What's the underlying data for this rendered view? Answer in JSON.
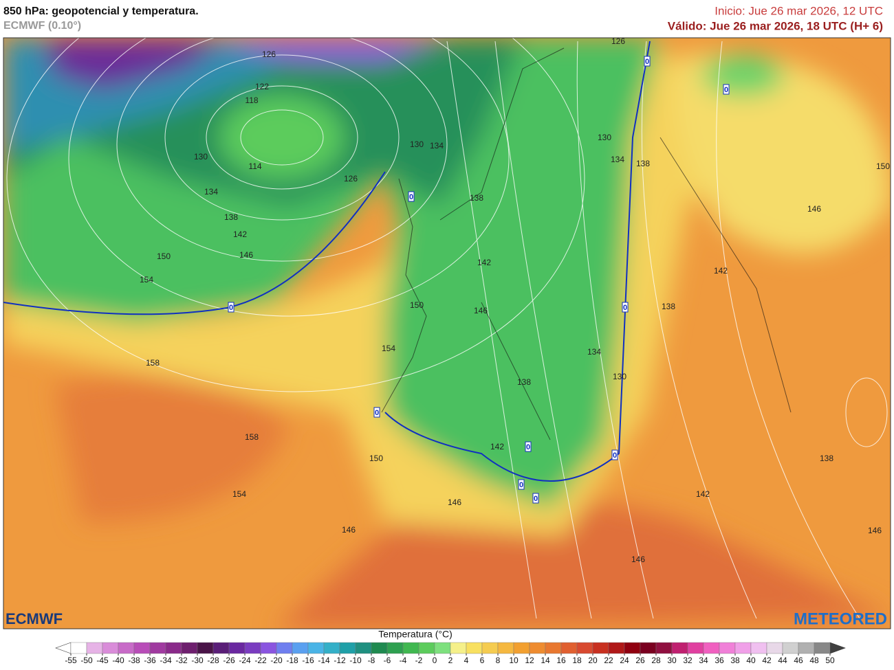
{
  "header": {
    "title": "850 hPa: geopotencial y temperatura.",
    "model": "ECMWF (0.10°)",
    "init": "Inicio: Jue 26 mar 2026, 12 UTC",
    "valid": "Válido: Jue 26 mar 2026, 18 UTC (H+ 6)"
  },
  "logos": {
    "left": "ECMWF",
    "right": "METEORED"
  },
  "contour_labels": [
    126,
    122,
    118,
    114,
    130,
    134,
    138,
    142,
    146,
    150,
    154,
    158,
    126,
    130,
    134,
    138,
    142,
    146,
    150,
    154,
    126,
    130,
    134,
    138,
    138,
    142,
    146,
    150,
    134,
    130,
    138,
    142,
    158,
    150,
    154,
    146,
    146,
    146,
    142,
    138,
    146
  ],
  "zero_labels": [
    0,
    0,
    0,
    0,
    0,
    0,
    0,
    0,
    0,
    0
  ],
  "colorbar": {
    "title": "Temperatura (°C)",
    "ticks": [
      -55,
      -50,
      -45,
      -40,
      -38,
      -36,
      -34,
      -32,
      -30,
      -28,
      -26,
      -24,
      -22,
      -20,
      -18,
      -16,
      -14,
      -12,
      -10,
      -8,
      -6,
      -4,
      -2,
      0,
      2,
      4,
      6,
      8,
      10,
      12,
      14,
      16,
      18,
      20,
      22,
      24,
      26,
      28,
      30,
      32,
      34,
      36,
      38,
      40,
      42,
      44,
      46,
      48,
      50
    ],
    "colors": [
      "#ffffff",
      "#e6b3e6",
      "#d98cd9",
      "#c86bc8",
      "#b84db8",
      "#a03aa0",
      "#8a2a8a",
      "#6e1f6e",
      "#4a1448",
      "#5a1e78",
      "#6a28a0",
      "#7a3cc0",
      "#8a55e0",
      "#6f7fef",
      "#5aa0f0",
      "#4ab4e6",
      "#34b0c8",
      "#1fa0a8",
      "#1f9080",
      "#1f8a50",
      "#2ea050",
      "#40b850",
      "#5ccc5c",
      "#7ee07e",
      "#f5f08a",
      "#f8e060",
      "#f5cc50",
      "#f5b840",
      "#f2a030",
      "#ee8c30",
      "#e87830",
      "#e06030",
      "#d84a30",
      "#c83020",
      "#b01818",
      "#900010",
      "#7a0020",
      "#901040",
      "#c02070",
      "#e040a0",
      "#f060c0",
      "#f080d8",
      "#f0a0e8",
      "#f0c0f0",
      "#e8d8e8",
      "#d0d0d0",
      "#b0b0b0",
      "#888888"
    ],
    "under_color": "#ffffff",
    "over_color": "#404040"
  }
}
